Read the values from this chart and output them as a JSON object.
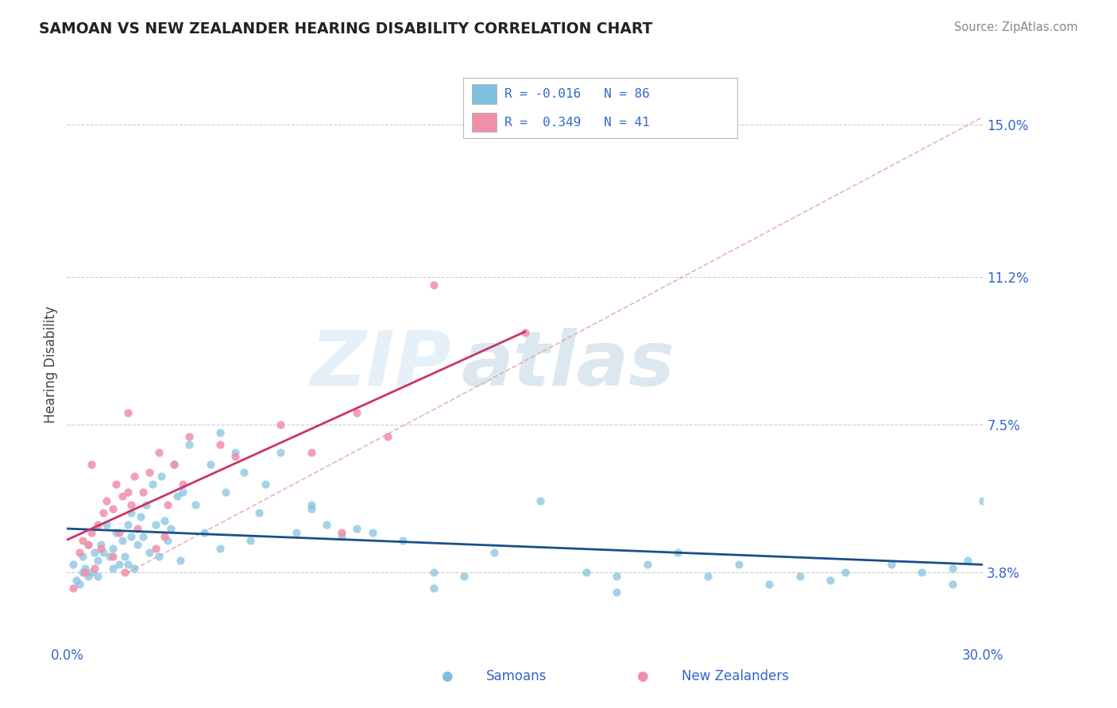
{
  "title": "SAMOAN VS NEW ZEALANDER HEARING DISABILITY CORRELATION CHART",
  "source": "Source: ZipAtlas.com",
  "color_blue": "#7fbfdf",
  "color_pink": "#f090a8",
  "trendline_blue_color": "#1a4f8a",
  "trendline_pink_color": "#cc3366",
  "dashed_line_color": "#e0a0b0",
  "ylabel": "Hearing Disability",
  "yticks": [
    3.8,
    7.5,
    11.2,
    15.0
  ],
  "ytick_labels": [
    "3.8%",
    "7.5%",
    "11.2%",
    "15.0%"
  ],
  "xtick_labels": [
    "0.0%",
    "30.0%"
  ],
  "xtick_vals": [
    0.0,
    30.0
  ],
  "xlim": [
    0.0,
    30.0
  ],
  "ylim": [
    2.0,
    16.0
  ],
  "legend_blue_label": "R = -0.016   N = 86",
  "legend_pink_label": "R =  0.349   N = 41",
  "bottom_legend_samoans": "Samoans",
  "bottom_legend_nzers": "New Zealanders",
  "samoans_x": [
    0.2,
    0.3,
    0.4,
    0.5,
    0.5,
    0.6,
    0.7,
    0.7,
    0.8,
    0.9,
    1.0,
    1.0,
    1.1,
    1.2,
    1.3,
    1.4,
    1.5,
    1.5,
    1.6,
    1.7,
    1.8,
    1.9,
    2.0,
    2.0,
    2.1,
    2.1,
    2.2,
    2.3,
    2.4,
    2.5,
    2.6,
    2.7,
    2.8,
    2.9,
    3.0,
    3.1,
    3.2,
    3.3,
    3.4,
    3.5,
    3.6,
    3.7,
    3.8,
    4.0,
    4.2,
    4.5,
    4.7,
    5.0,
    5.2,
    5.5,
    5.8,
    6.0,
    6.3,
    6.5,
    7.0,
    7.5,
    8.0,
    8.5,
    9.0,
    9.5,
    10.0,
    11.0,
    12.0,
    13.0,
    14.0,
    15.5,
    17.0,
    18.0,
    19.0,
    20.0,
    21.0,
    22.0,
    23.0,
    24.0,
    25.5,
    27.0,
    28.0,
    29.0,
    29.5,
    30.0,
    8.0,
    12.0,
    18.0,
    25.0,
    29.0,
    5.0
  ],
  "samoans_y": [
    4.0,
    3.6,
    3.5,
    3.8,
    4.2,
    3.9,
    4.5,
    3.7,
    3.8,
    4.3,
    4.1,
    3.7,
    4.5,
    4.3,
    5.0,
    4.2,
    4.4,
    3.9,
    4.8,
    4.0,
    4.6,
    4.2,
    5.0,
    4.0,
    4.7,
    5.3,
    3.9,
    4.5,
    5.2,
    4.7,
    5.5,
    4.3,
    6.0,
    5.0,
    4.2,
    6.2,
    5.1,
    4.6,
    4.9,
    6.5,
    5.7,
    4.1,
    5.8,
    7.0,
    5.5,
    4.8,
    6.5,
    7.3,
    5.8,
    6.8,
    6.3,
    4.6,
    5.3,
    6.0,
    6.8,
    4.8,
    5.4,
    5.0,
    4.7,
    4.9,
    4.8,
    4.6,
    3.8,
    3.7,
    4.3,
    5.6,
    3.8,
    3.7,
    4.0,
    4.3,
    3.7,
    4.0,
    3.5,
    3.7,
    3.8,
    4.0,
    3.8,
    3.9,
    4.1,
    5.6,
    5.5,
    3.4,
    3.3,
    3.6,
    3.5,
    4.4
  ],
  "nzers_x": [
    0.2,
    0.4,
    0.5,
    0.6,
    0.7,
    0.8,
    0.9,
    1.0,
    1.1,
    1.2,
    1.3,
    1.5,
    1.6,
    1.7,
    1.8,
    1.9,
    2.0,
    2.1,
    2.2,
    2.3,
    2.5,
    2.7,
    2.9,
    3.0,
    3.2,
    3.5,
    3.8,
    4.0,
    5.0,
    5.5,
    7.0,
    8.0,
    9.0,
    9.5,
    10.5,
    12.0,
    3.3,
    2.0,
    0.8,
    1.5,
    15.0
  ],
  "nzers_y": [
    3.4,
    4.3,
    4.6,
    3.8,
    4.5,
    4.8,
    3.9,
    5.0,
    4.4,
    5.3,
    5.6,
    5.4,
    6.0,
    4.8,
    5.7,
    3.8,
    5.8,
    5.5,
    6.2,
    4.9,
    5.8,
    6.3,
    4.4,
    6.8,
    4.7,
    6.5,
    6.0,
    7.2,
    7.0,
    6.7,
    7.5,
    6.8,
    4.8,
    7.8,
    7.2,
    11.0,
    5.5,
    7.8,
    6.5,
    4.2,
    9.8
  ]
}
